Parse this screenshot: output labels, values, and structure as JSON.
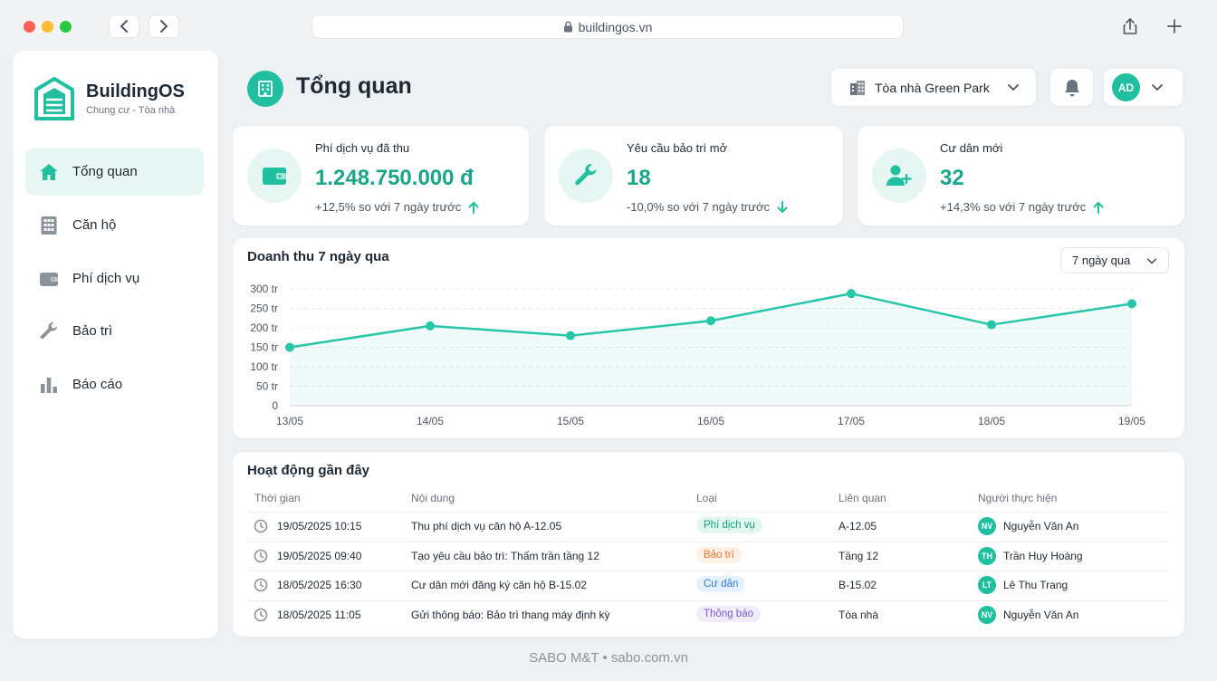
{
  "browser": {
    "url": "buildingos.vn"
  },
  "brand": {
    "name": "BuildingOS",
    "subtitle": "Chung cư - Tòa nhà"
  },
  "sidebar": {
    "items": [
      {
        "label": "Tổng quan",
        "icon": "home-icon",
        "active": true
      },
      {
        "label": "Căn hộ",
        "icon": "apartment-grid-icon",
        "active": false
      },
      {
        "label": "Phí dịch vụ",
        "icon": "wallet-icon",
        "active": false
      },
      {
        "label": "Bảo trì",
        "icon": "wrench-icon",
        "active": false
      },
      {
        "label": "Báo cáo",
        "icon": "bar-chart-icon",
        "active": false
      }
    ]
  },
  "header": {
    "title": "Tổng quan",
    "building": "Tòa nhà Green Park",
    "user_initials": "AD"
  },
  "stats": [
    {
      "label": "Phí dịch vụ đã thu",
      "value": "1.248.750.000 đ",
      "change": "+12,5% so với 7 ngày trước",
      "trend": "up",
      "icon": "wallet-icon"
    },
    {
      "label": "Yêu cầu bảo trì mở",
      "value": "18",
      "change": "-10,0% so với 7 ngày trước",
      "trend": "down",
      "icon": "wrench-icon"
    },
    {
      "label": "Cư dân mới",
      "value": "32",
      "change": "+14,3% so với 7 ngày trước",
      "trend": "up",
      "icon": "user-add-icon"
    }
  ],
  "chart_data": {
    "type": "area",
    "title": "Doanh thu 7 ngày qua",
    "range_label": "7 ngày qua",
    "x": [
      "13/05",
      "14/05",
      "15/05",
      "16/05",
      "17/05",
      "18/05",
      "19/05"
    ],
    "y_ticks": [
      "0",
      "50 tr",
      "100 tr",
      "150 tr",
      "200 tr",
      "250 tr",
      "300 tr"
    ],
    "ylim": [
      0,
      300
    ],
    "series": [
      {
        "values": [
          150,
          205,
          180,
          218,
          288,
          208,
          262
        ]
      }
    ],
    "grid": true,
    "color": "#26c6a8"
  },
  "activity": {
    "title": "Hoạt động gần đây",
    "columns": [
      "Thời gian",
      "Nội dung",
      "Loại",
      "Liên quan",
      "Người thực hiện"
    ],
    "rows": [
      {
        "time": "19/05/2025 10:15",
        "content": "Thu phí dịch vụ căn hộ A-12.05",
        "type": "Phí dịch vụ",
        "type_color": "#0f9b7e",
        "type_bg": "#e3f7f1",
        "related": "A-12.05",
        "initials": "NV",
        "person": "Nguyễn Văn An"
      },
      {
        "time": "19/05/2025 09:40",
        "content": "Tạo yêu cầu bảo trì: Thấm trần tầng 12",
        "type": "Bảo trì",
        "type_color": "#e8772e",
        "type_bg": "#fdf0e6",
        "related": "Tầng 12",
        "initials": "TH",
        "person": "Trần Huy Hoàng"
      },
      {
        "time": "18/05/2025 16:30",
        "content": "Cư dân mới đăng ký căn hộ B-15.02",
        "type": "Cư dân",
        "type_color": "#2f7fd8",
        "type_bg": "#e7f1fc",
        "related": "B-15.02",
        "initials": "LT",
        "person": "Lê Thu Trang"
      },
      {
        "time": "18/05/2025 11:05",
        "content": "Gửi thông báo: Bảo trì thang máy định kỳ",
        "type": "Thông báo",
        "type_color": "#7b5bc9",
        "type_bg": "#f1ecfb",
        "related": "Tòa nhà",
        "initials": "NV",
        "person": "Nguyễn Văn An"
      }
    ]
  },
  "footer": "SABO M&T • sabo.com.vn"
}
